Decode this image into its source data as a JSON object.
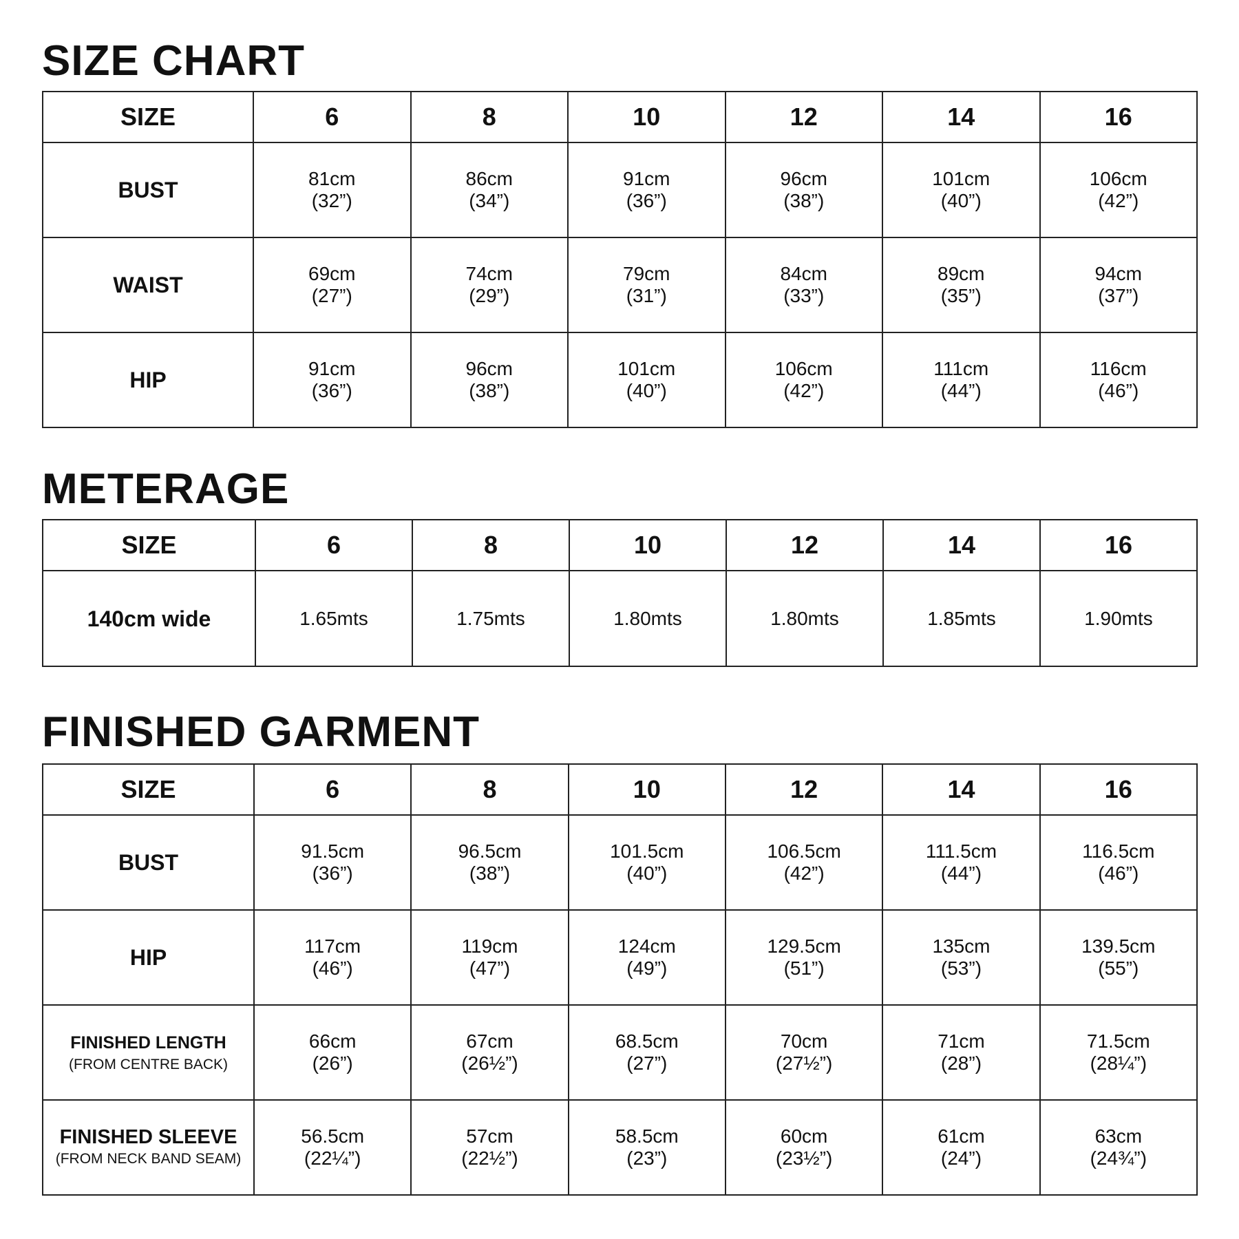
{
  "size_chart": {
    "title": "SIZE CHART",
    "header": [
      "SIZE",
      "6",
      "8",
      "10",
      "12",
      "14",
      "16"
    ],
    "rows": [
      {
        "label": "BUST",
        "cells": [
          [
            "81cm",
            "(32”)"
          ],
          [
            "86cm",
            "(34”)"
          ],
          [
            "91cm",
            "(36”)"
          ],
          [
            "96cm",
            "(38”)"
          ],
          [
            "101cm",
            "(40”)"
          ],
          [
            "106cm",
            "(42”)"
          ]
        ]
      },
      {
        "label": "WAIST",
        "cells": [
          [
            "69cm",
            "(27”)"
          ],
          [
            "74cm",
            "(29”)"
          ],
          [
            "79cm",
            "(31”)"
          ],
          [
            "84cm",
            "(33”)"
          ],
          [
            "89cm",
            "(35”)"
          ],
          [
            "94cm",
            "(37”)"
          ]
        ]
      },
      {
        "label": "HIP",
        "cells": [
          [
            "91cm",
            "(36”)"
          ],
          [
            "96cm",
            "(38”)"
          ],
          [
            "101cm",
            "(40”)"
          ],
          [
            "106cm",
            "(42”)"
          ],
          [
            "111cm",
            "(44”)"
          ],
          [
            "116cm",
            "(46”)"
          ]
        ]
      }
    ]
  },
  "meterage": {
    "title": "METERAGE",
    "header": [
      "SIZE",
      "6",
      "8",
      "10",
      "12",
      "14",
      "16"
    ],
    "rows": [
      {
        "label": "140cm wide",
        "cells": [
          "1.65mts",
          "1.75mts",
          "1.80mts",
          "1.80mts",
          "1.85mts",
          "1.90mts"
        ]
      }
    ]
  },
  "finished_garment": {
    "title": "FINISHED GARMENT",
    "header": [
      "SIZE",
      "6",
      "8",
      "10",
      "12",
      "14",
      "16"
    ],
    "rows": [
      {
        "label": "BUST",
        "sub": "",
        "cells": [
          [
            "91.5cm",
            "(36”)"
          ],
          [
            "96.5cm",
            "(38”)"
          ],
          [
            "101.5cm",
            "(40”)"
          ],
          [
            "106.5cm",
            "(42”)"
          ],
          [
            "111.5cm",
            "(44”)"
          ],
          [
            "116.5cm",
            "(46”)"
          ]
        ]
      },
      {
        "label": "HIP",
        "sub": "",
        "cells": [
          [
            "117cm",
            "(46”)"
          ],
          [
            "119cm",
            "(47”)"
          ],
          [
            "124cm",
            "(49”)"
          ],
          [
            "129.5cm",
            "(51”)"
          ],
          [
            "135cm",
            "(53”)"
          ],
          [
            "139.5cm",
            "(55”)"
          ]
        ]
      },
      {
        "label": "FINISHED LENGTH",
        "sub": "(FROM CENTRE BACK)",
        "cells": [
          [
            "66cm",
            "(26”)"
          ],
          [
            "67cm",
            "(26½”)"
          ],
          [
            "68.5cm",
            "(27”)"
          ],
          [
            "70cm",
            "(27½”)"
          ],
          [
            "71cm",
            "(28”)"
          ],
          [
            "71.5cm",
            "(28¼”)"
          ]
        ]
      },
      {
        "label": "FINISHED SLEEVE",
        "sub": "(FROM NECK BAND SEAM)",
        "cells": [
          [
            "56.5cm",
            "(22¼”)"
          ],
          [
            "57cm",
            "(22½”)"
          ],
          [
            "58.5cm",
            "(23”)"
          ],
          [
            "60cm",
            "(23½”)"
          ],
          [
            "61cm",
            "(24”)"
          ],
          [
            "63cm",
            "(24¾”)"
          ]
        ]
      }
    ]
  }
}
